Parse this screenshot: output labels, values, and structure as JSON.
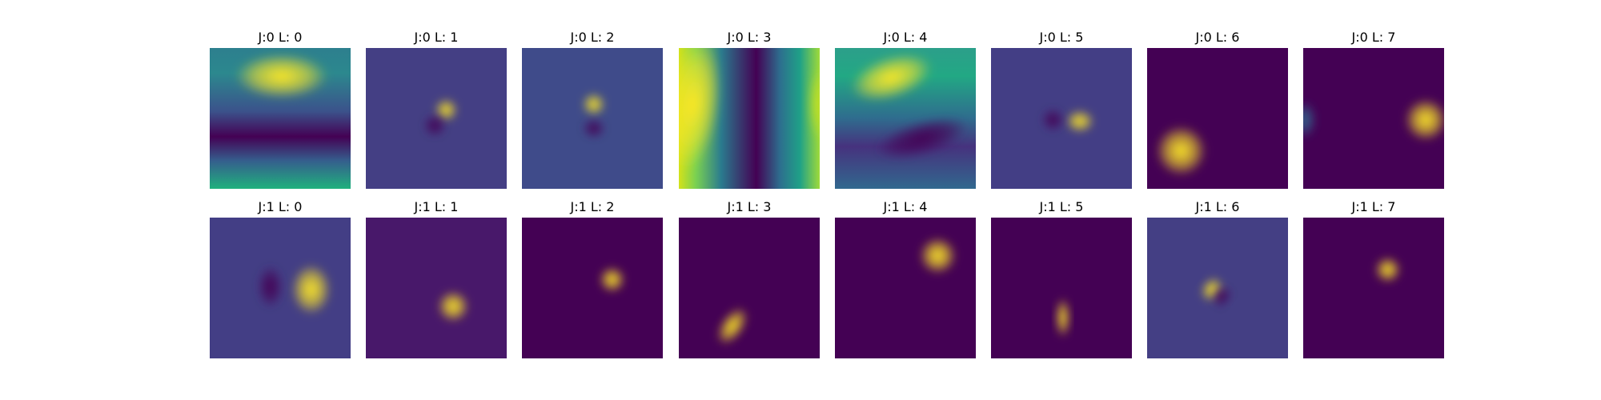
{
  "figure": {
    "panels": [
      {
        "title": "J:0 L: 0",
        "background": "#440154",
        "base_gradient": {
          "direction": "vertical",
          "stops": [
            [
              "#2d7f8e",
              0
            ],
            [
              "#2c888e",
              18
            ],
            [
              "#3b528b",
              45
            ],
            [
              "#440154",
              63
            ],
            [
              "#355e8d",
              80
            ],
            [
              "#20b17d",
              100
            ]
          ]
        },
        "blobs": [
          {
            "cx": 51,
            "cy": 20,
            "rx": 33,
            "ry": 16,
            "rot": 0,
            "color": "#fde725"
          }
        ]
      },
      {
        "title": "J:0 L: 1",
        "background": "#443f84",
        "base_gradient": null,
        "blobs": [
          {
            "cx": 57,
            "cy": 44,
            "rx": 8,
            "ry": 8,
            "rot": 0,
            "color": "#fde725"
          },
          {
            "cx": 49,
            "cy": 55,
            "rx": 8,
            "ry": 8,
            "rot": 0,
            "color": "#440154"
          }
        ]
      },
      {
        "title": "J:0 L: 2",
        "background": "#3f4b8a",
        "base_gradient": null,
        "blobs": [
          {
            "cx": 51,
            "cy": 40,
            "rx": 8,
            "ry": 8,
            "rot": 0,
            "color": "#fde725"
          },
          {
            "cx": 51,
            "cy": 57,
            "rx": 8,
            "ry": 7,
            "rot": 0,
            "color": "#440154"
          }
        ]
      },
      {
        "title": "J:0 L: 3",
        "background": "#2c8e8c",
        "base_gradient": {
          "direction": "horizontal",
          "stops": [
            [
              "#d2e21b",
              0
            ],
            [
              "#7ad151",
              12
            ],
            [
              "#2a7b8e",
              30
            ],
            [
              "#440154",
              55
            ],
            [
              "#2d6f8e",
              72
            ],
            [
              "#1fa187",
              86
            ],
            [
              "#9fda3a",
              100
            ]
          ]
        },
        "blobs": [
          {
            "cx": 10,
            "cy": 40,
            "rx": 20,
            "ry": 48,
            "rot": 8,
            "color": "#fde725"
          },
          {
            "cx": 100,
            "cy": 40,
            "rx": 8,
            "ry": 26,
            "rot": 0,
            "color": "#c2df23"
          }
        ]
      },
      {
        "title": "J:0 L: 4",
        "background": "#31688e",
        "base_gradient": {
          "direction": "vertical",
          "stops": [
            [
              "#2c9f8a",
              0
            ],
            [
              "#22a884",
              20
            ],
            [
              "#2f6c8e",
              50
            ],
            [
              "#46327e",
              70
            ],
            [
              "#31688e",
              100
            ]
          ]
        },
        "blobs": [
          {
            "cx": 40,
            "cy": 21,
            "rx": 30,
            "ry": 15,
            "rot": -18,
            "color": "#fde725"
          },
          {
            "cx": 62,
            "cy": 64,
            "rx": 34,
            "ry": 12,
            "rot": -16,
            "color": "#440154"
          }
        ]
      },
      {
        "title": "J:0 L: 5",
        "background": "#433e85",
        "base_gradient": null,
        "blobs": [
          {
            "cx": 63,
            "cy": 52,
            "rx": 10,
            "ry": 8,
            "rot": 0,
            "color": "#fde725"
          },
          {
            "cx": 44,
            "cy": 51,
            "rx": 8,
            "ry": 8,
            "rot": 0,
            "color": "#440154"
          }
        ]
      },
      {
        "title": "J:0 L: 6",
        "background": "#440154",
        "base_gradient": null,
        "blobs": [
          {
            "cx": 24,
            "cy": 73,
            "rx": 18,
            "ry": 18,
            "rot": 0,
            "color": "#fde725"
          }
        ]
      },
      {
        "title": "J:0 L: 7",
        "background": "#440154",
        "base_gradient": null,
        "blobs": [
          {
            "cx": 87,
            "cy": 51,
            "rx": 15,
            "ry": 15,
            "rot": 0,
            "color": "#fde725"
          },
          {
            "cx": 1,
            "cy": 51,
            "rx": 8,
            "ry": 13,
            "rot": 0,
            "color": "#31688e"
          }
        ]
      },
      {
        "title": "J:1 L: 0",
        "background": "#433e85",
        "base_gradient": null,
        "blobs": [
          {
            "cx": 72,
            "cy": 51,
            "rx": 14,
            "ry": 18,
            "rot": 0,
            "color": "#fde725"
          },
          {
            "cx": 43,
            "cy": 49,
            "rx": 9,
            "ry": 15,
            "rot": 0,
            "color": "#440154"
          }
        ]
      },
      {
        "title": "J:1 L: 1",
        "background": "#48186a",
        "base_gradient": null,
        "blobs": [
          {
            "cx": 62,
            "cy": 63,
            "rx": 11,
            "ry": 11,
            "rot": 0,
            "color": "#fde725"
          }
        ]
      },
      {
        "title": "J:1 L: 2",
        "background": "#440154",
        "base_gradient": null,
        "blobs": [
          {
            "cx": 64,
            "cy": 44,
            "rx": 9,
            "ry": 9,
            "rot": 0,
            "color": "#fde725"
          }
        ]
      },
      {
        "title": "J:1 L: 3",
        "background": "#440154",
        "base_gradient": null,
        "blobs": [
          {
            "cx": 38,
            "cy": 77,
            "rx": 8,
            "ry": 15,
            "rot": 35,
            "color": "#fde725"
          }
        ]
      },
      {
        "title": "J:1 L: 4",
        "background": "#440154",
        "base_gradient": null,
        "blobs": [
          {
            "cx": 73,
            "cy": 27,
            "rx": 13,
            "ry": 13,
            "rot": 0,
            "color": "#fde725"
          }
        ]
      },
      {
        "title": "J:1 L: 5",
        "background": "#440154",
        "base_gradient": null,
        "blobs": [
          {
            "cx": 51,
            "cy": 71,
            "rx": 5,
            "ry": 14,
            "rot": 0,
            "color": "#fde725"
          }
        ]
      },
      {
        "title": "J:1 L: 6",
        "background": "#443f84",
        "base_gradient": null,
        "blobs": [
          {
            "cx": 46,
            "cy": 51,
            "rx": 7,
            "ry": 9,
            "rot": 35,
            "color": "#fde725"
          },
          {
            "cx": 53,
            "cy": 56,
            "rx": 6,
            "ry": 8,
            "rot": 35,
            "color": "#440154"
          }
        ]
      },
      {
        "title": "J:1 L: 7",
        "background": "#440154",
        "base_gradient": null,
        "blobs": [
          {
            "cx": 60,
            "cy": 37,
            "rx": 9,
            "ry": 9,
            "rot": 0,
            "color": "#fde725"
          }
        ]
      }
    ]
  }
}
